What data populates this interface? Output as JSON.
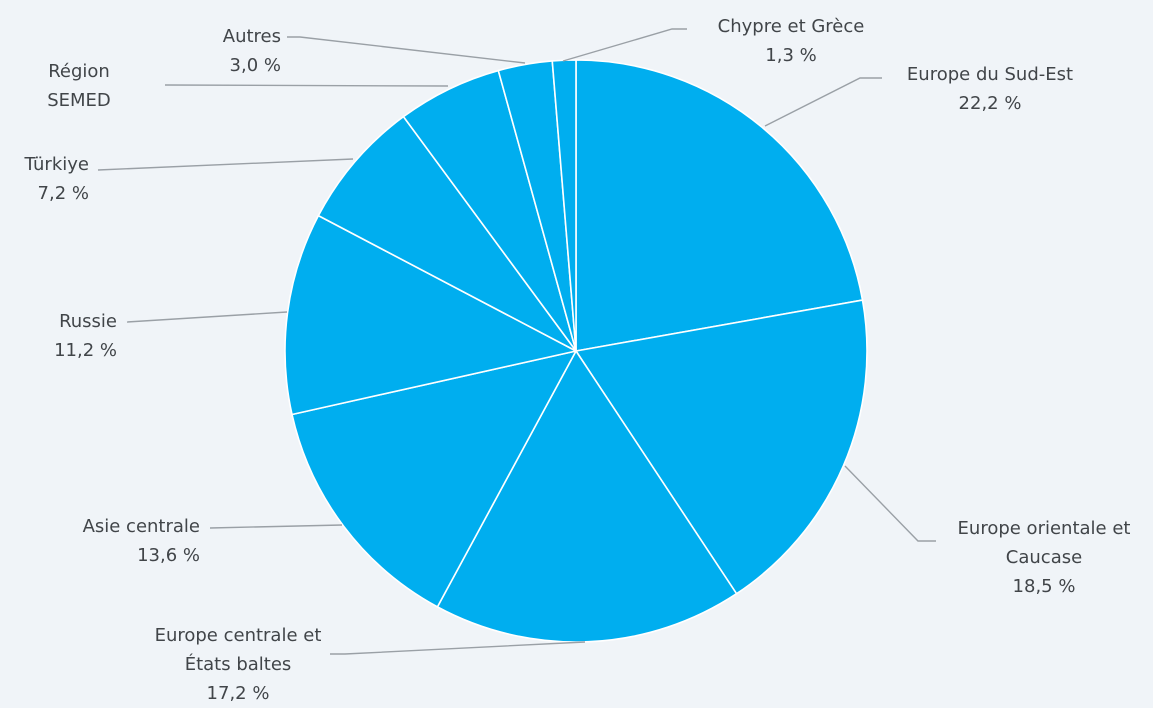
{
  "chart_data": {
    "type": "pie",
    "title": "",
    "start_angle_deg": 0,
    "direction": "clockwise",
    "slice_color": "#00aeef",
    "separator_color": "#ffffff",
    "leader_color": "#9aa0a6",
    "text_color": "#414549",
    "background": "#f0f4f8",
    "slices": [
      {
        "label": "Europe du Sud-Est",
        "display_value": "22,2 %",
        "value": 22.2
      },
      {
        "label": "Europe orientale et Caucase",
        "display_value": "18,5 %",
        "value": 18.5
      },
      {
        "label": "Europe centrale et États baltes",
        "display_value": "17,2 %",
        "value": 17.2
      },
      {
        "label": "Asie centrale",
        "display_value": "13,6 %",
        "value": 13.6
      },
      {
        "label": "Russie",
        "display_value": "11,2 %",
        "value": 11.2
      },
      {
        "label": "Türkiye",
        "display_value": "7,2 %",
        "value": 7.2
      },
      {
        "label": "Région SEMED",
        "display_value": "",
        "value": 5.8
      },
      {
        "label": "Autres",
        "display_value": "3,0 %",
        "value": 3.0
      },
      {
        "label": "Chypre et Grèce",
        "display_value": "1,3 %",
        "value": 1.3
      }
    ]
  }
}
